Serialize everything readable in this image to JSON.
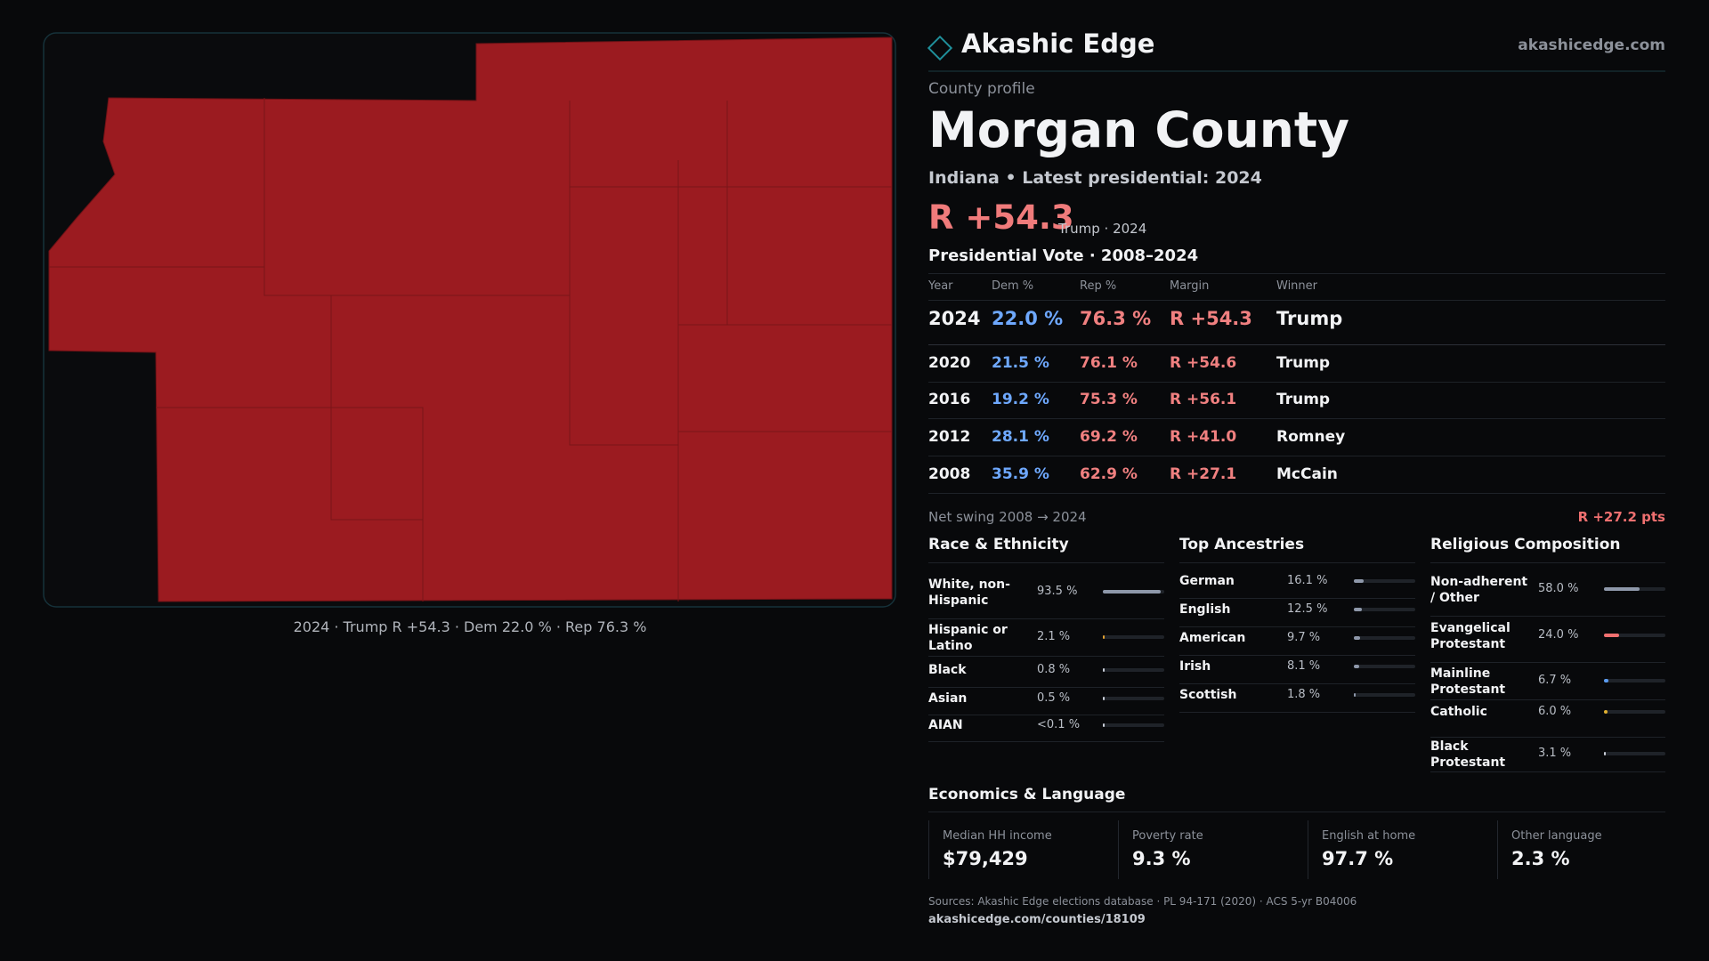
{
  "map": {
    "caption": "2024 · Trump R +54.3 · Dem 22.0 % · Rep 76.3 %"
  },
  "header": {
    "brand": "Akashic Edge",
    "site": "akashicedge.com"
  },
  "profile": {
    "kicker": "County profile",
    "title": "Morgan County",
    "subtitle": "Indiana • Latest presidential: 2024",
    "margin": "R +54.3",
    "margin_note": "Trump · 2024"
  },
  "vote_table": {
    "title": "Presidential Vote · 2008–2024",
    "columns": [
      "Year",
      "Dem %",
      "Rep %",
      "Margin",
      "Winner"
    ],
    "rows": [
      [
        "2024",
        "22.0 %",
        "76.3 %",
        "R +54.3",
        "Trump"
      ],
      [
        "2020",
        "21.5 %",
        "76.1 %",
        "R +54.6",
        "Trump"
      ],
      [
        "2016",
        "19.2 %",
        "75.3 %",
        "R +56.1",
        "Trump"
      ],
      [
        "2012",
        "28.1 %",
        "69.2 %",
        "R +41.0",
        "Romney"
      ],
      [
        "2008",
        "35.9 %",
        "62.9 %",
        "R +27.1",
        "McCain"
      ]
    ],
    "swing_label": "Net swing 2008 → 2024",
    "swing_value": "R +27.2 pts"
  },
  "race": {
    "title": "Race & Ethnicity",
    "rows": [
      {
        "label": "White, non-Hispanic",
        "value": 93.5,
        "value_label": "93.5 %",
        "color": "#8e98aa"
      },
      {
        "label": "Hispanic or Latino",
        "value": 2.1,
        "value_label": "2.1 %",
        "color": "#e0a030"
      },
      {
        "label": "Black",
        "value": 0.8,
        "value_label": "0.8 %",
        "color": "#c9ced8"
      },
      {
        "label": "Asian",
        "value": 0.5,
        "value_label": "0.5 %",
        "color": "#c9ced8"
      },
      {
        "label": "AIAN",
        "value": 0.05,
        "value_label": "<0.1 %",
        "color": "#c9ced8"
      }
    ]
  },
  "ancestry": {
    "title": "Top Ancestries",
    "rows": [
      {
        "label": "German",
        "value": 16.1,
        "value_label": "16.1 %",
        "color": "#8e98aa"
      },
      {
        "label": "English",
        "value": 12.5,
        "value_label": "12.5 %",
        "color": "#8e98aa"
      },
      {
        "label": "American",
        "value": 9.7,
        "value_label": "9.7 %",
        "color": "#8e98aa"
      },
      {
        "label": "Irish",
        "value": 8.1,
        "value_label": "8.1 %",
        "color": "#8e98aa"
      },
      {
        "label": "Scottish",
        "value": 1.8,
        "value_label": "1.8 %",
        "color": "#8e98aa"
      }
    ]
  },
  "religion": {
    "title": "Religious Composition",
    "rows": [
      {
        "label": "Non-adherent / Other",
        "value": 58.0,
        "value_label": "58.0 %",
        "color": "#8e98aa"
      },
      {
        "label": "Evangelical Protestant",
        "value": 24.0,
        "value_label": "24.0 %",
        "color": "#f07070"
      },
      {
        "label": "Mainline Protestant",
        "value": 6.7,
        "value_label": "6.7 %",
        "color": "#5b9bf0"
      },
      {
        "label": "Catholic",
        "value": 6.0,
        "value_label": "6.0 %",
        "color": "#e0b030"
      },
      {
        "label": "Black Protestant",
        "value": 3.1,
        "value_label": "3.1 %",
        "color": "#c9ced8"
      }
    ]
  },
  "economics": {
    "title": "Economics & Language",
    "items": [
      {
        "label": "Median HH income",
        "value": "$79,429"
      },
      {
        "label": "Poverty rate",
        "value": "9.3 %"
      },
      {
        "label": "English at home",
        "value": "97.7 %"
      },
      {
        "label": "Other language",
        "value": "2.3 %"
      }
    ]
  },
  "footer": {
    "sources": "Sources: Akashic Edge elections database · PL 94-171 (2020) · ACS 5-yr B04006",
    "url": "akashicedge.com/counties/18109"
  }
}
